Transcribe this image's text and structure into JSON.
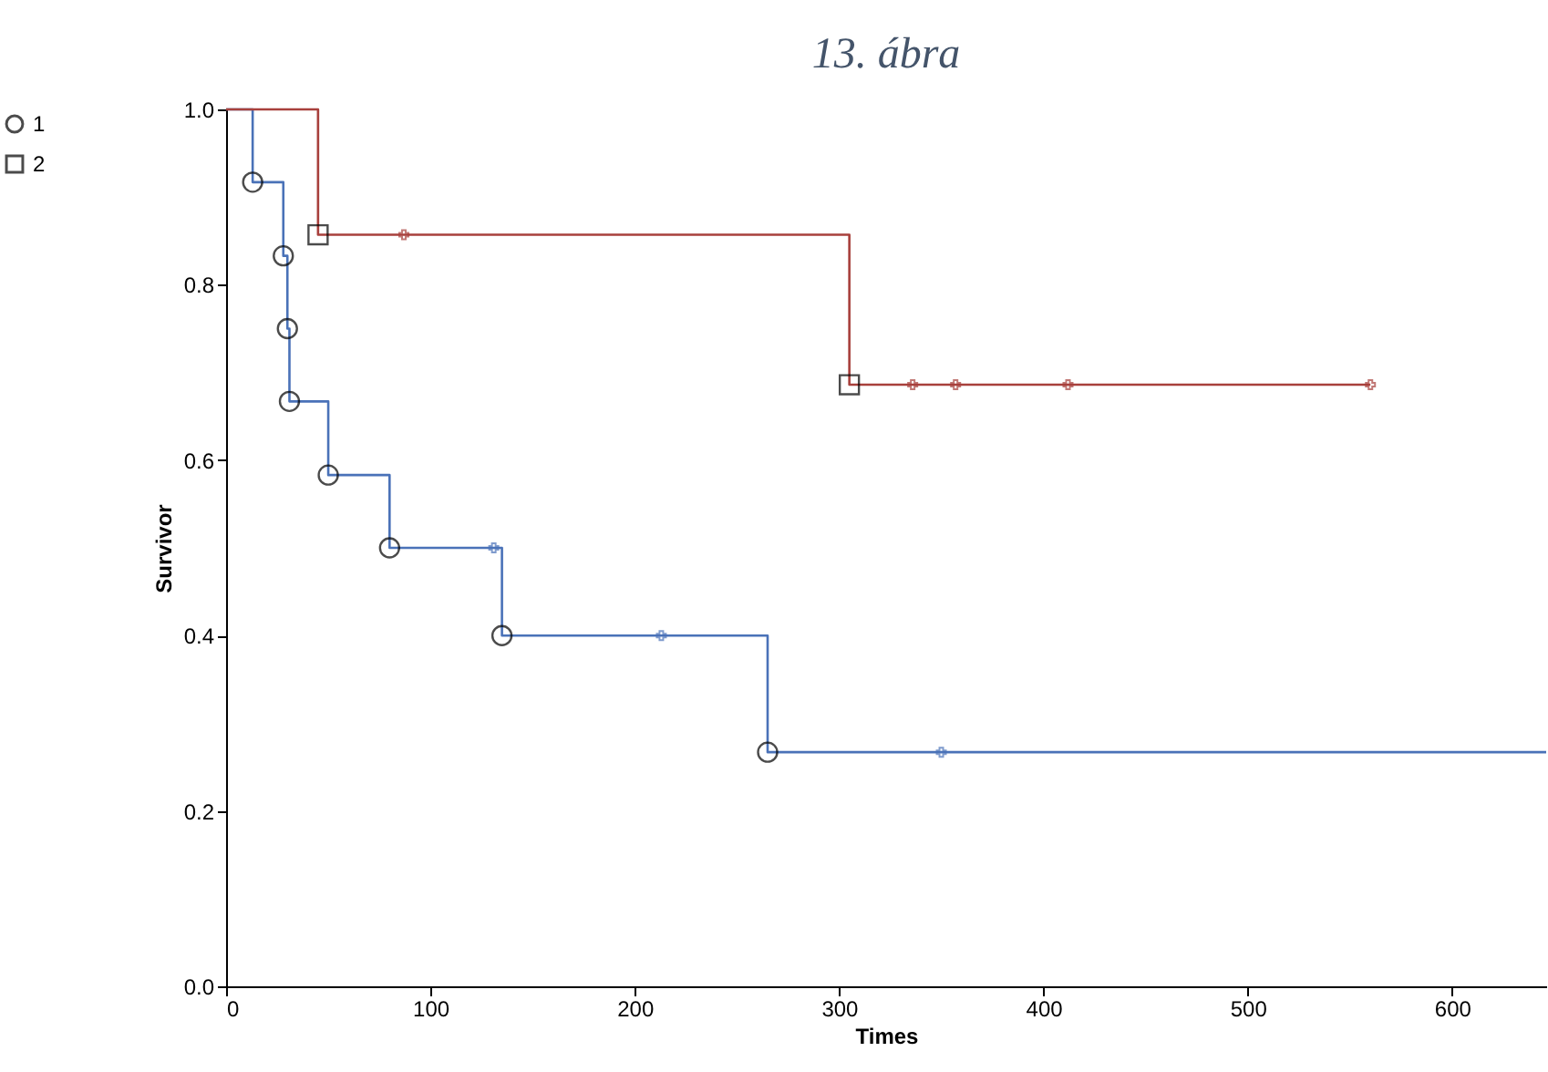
{
  "chart_data": {
    "type": "step",
    "title": "13. ábra",
    "xlabel": "Times",
    "ylabel": "Survivor",
    "xlim": [
      0,
      646
    ],
    "xticks": [
      0,
      100,
      200,
      300,
      400,
      500,
      600
    ],
    "ylim": [
      0,
      1
    ],
    "yticks": [
      {
        "value": 0,
        "label": "0.0"
      },
      {
        "value": 0.2,
        "label": "0.2"
      },
      {
        "value": 0.4,
        "label": "0.4"
      },
      {
        "value": 0.6,
        "label": "0.6"
      },
      {
        "value": 0.8,
        "label": "0.8"
      },
      {
        "value": 1,
        "label": "1.0"
      }
    ],
    "grid": false,
    "legend": "top left",
    "line_style": "solid",
    "series": [
      {
        "color": "#4a72b8",
        "marker": "none",
        "x": [
          0,
          13,
          28,
          30,
          31,
          50,
          80,
          135,
          265,
          646
        ],
        "values": [
          1,
          0.917,
          0.833,
          0.75,
          0.667,
          0.583,
          0.5,
          0.4,
          0.267,
          0.267
        ]
      },
      {
        "color": "#a8403c",
        "marker": "none",
        "x": [
          0,
          45,
          305,
          560
        ],
        "values": [
          1,
          0.857,
          0.686,
          0.686
        ]
      },
      {
        "type": "scatter",
        "color": "#4a72b8",
        "marker": "cross",
        "x": [
          131,
          213,
          350
        ],
        "values": [
          0.5,
          0.4,
          0.267
        ]
      },
      {
        "type": "scatter",
        "color": "#a8403c",
        "marker": "cross",
        "x": [
          87,
          336,
          357,
          412,
          560
        ],
        "values": [
          0.857,
          0.686,
          0.686,
          0.686,
          0.686
        ]
      },
      {
        "type": "scatter",
        "name": "1",
        "color": "#000000",
        "marker": "circle",
        "x": [
          13,
          28,
          30,
          31,
          50,
          80,
          135,
          265
        ],
        "values": [
          0.917,
          0.833,
          0.75,
          0.667,
          0.583,
          0.5,
          0.4,
          0.267
        ]
      },
      {
        "type": "scatter",
        "name": "2",
        "color": "#000000",
        "marker": "square",
        "x": [
          45,
          305
        ],
        "values": [
          0.857,
          0.686
        ]
      }
    ]
  }
}
